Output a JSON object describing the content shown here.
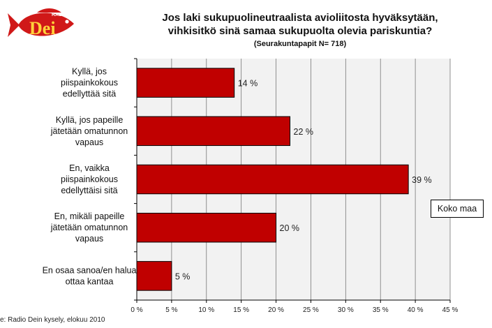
{
  "logo": {
    "small_text": "RADIO",
    "big_text": "Dei"
  },
  "chart_data": {
    "type": "bar",
    "orientation": "horizontal",
    "title_lines": [
      "Jos laki sukupuolineutraalista avioliitosta hyväksytään,",
      "vihkisitkö sinä samaa sukupuolta olevia pariskuntia?"
    ],
    "subtitle": "(Seurakuntapapit N= 718)",
    "categories": [
      [
        "Kyllä, jos",
        "piispainkokous",
        "edellyttää sitä"
      ],
      [
        "Kyllä, jos papeille",
        "jätetään omatunnon",
        "vapaus"
      ],
      [
        "En, vaikka",
        "piispainkokous",
        "edellyttäisi sitä"
      ],
      [
        "En, mikäli papeille",
        "jätetään omatunnon",
        "vapaus"
      ],
      [
        "En osaa sanoa/en halua",
        "ottaa kantaa"
      ]
    ],
    "values": [
      14,
      22,
      39,
      20,
      5
    ],
    "value_labels": [
      "14 %",
      "22 %",
      "39 %",
      "20 %",
      "5 %"
    ],
    "xlim": [
      0,
      45
    ],
    "xticks": [
      0,
      5,
      10,
      15,
      20,
      25,
      30,
      35,
      40,
      45
    ],
    "xtick_labels": [
      "0 %",
      "5 %",
      "10 %",
      "15 %",
      "20 %",
      "25 %",
      "30 %",
      "35 %",
      "40 %",
      "45 %"
    ],
    "grid": "vertical",
    "legend": {
      "label": "Koko maa",
      "placement": "right"
    },
    "bar_color": "#c00000",
    "plot_bg": "#f2f2f2"
  },
  "source": "e: Radio Dein kysely, elokuu 2010"
}
